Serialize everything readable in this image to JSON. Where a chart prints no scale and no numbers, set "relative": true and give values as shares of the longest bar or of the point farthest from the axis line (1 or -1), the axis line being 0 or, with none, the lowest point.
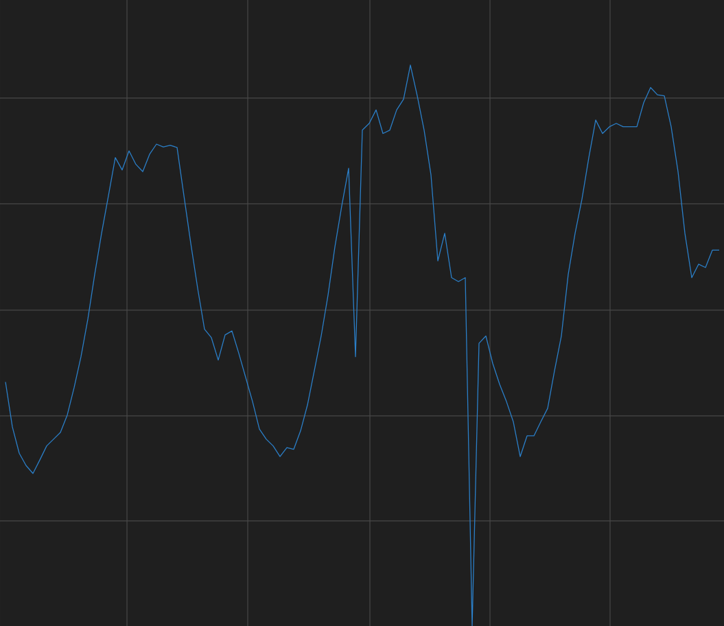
{
  "chart_data": {
    "type": "line",
    "relative": true,
    "grid": true,
    "color": "#2b7fc8",
    "categories": [
      null,
      null,
      null,
      null,
      null,
      null,
      null,
      null,
      null,
      null,
      null,
      null,
      null,
      null,
      null,
      null,
      null,
      null,
      null,
      null,
      null,
      null,
      null,
      null,
      null,
      null,
      null,
      null,
      null,
      null,
      null,
      null,
      null,
      null,
      null,
      null,
      null,
      null,
      null,
      null,
      null,
      null,
      null,
      null,
      null,
      null,
      null,
      null,
      null,
      null,
      null,
      null,
      null,
      null,
      null,
      null,
      null,
      null,
      null,
      null,
      null,
      null,
      null,
      null,
      null,
      null,
      null,
      null,
      null,
      null,
      null,
      null,
      null,
      null,
      null,
      null,
      null,
      null,
      null,
      null,
      null,
      null,
      null,
      null,
      null,
      null,
      null,
      null,
      null,
      null,
      null,
      null,
      null,
      null,
      null,
      null,
      null,
      null,
      null,
      null,
      null,
      null,
      null,
      null,
      null
    ],
    "values": [
      0.435,
      0.355,
      0.308,
      0.286,
      0.272,
      0.296,
      0.321,
      0.333,
      0.345,
      0.376,
      0.425,
      0.48,
      0.547,
      0.627,
      0.7,
      0.767,
      0.835,
      0.813,
      0.847,
      0.823,
      0.81,
      0.841,
      0.859,
      0.854,
      0.857,
      0.853,
      0.767,
      0.682,
      0.602,
      0.529,
      0.514,
      0.474,
      0.519,
      0.526,
      0.486,
      0.443,
      0.4,
      0.351,
      0.333,
      0.321,
      0.302,
      0.318,
      0.315,
      0.348,
      0.394,
      0.455,
      0.517,
      0.59,
      0.676,
      0.749,
      0.816,
      0.48,
      0.884,
      0.896,
      0.92,
      0.878,
      0.884,
      0.92,
      0.939,
      1,
      0.945,
      0.884,
      0.804,
      0.651,
      0.7,
      0.621,
      0.614,
      0.621,
      0,
      0.504,
      0.517,
      0.468,
      0.431,
      0.4,
      0.364,
      0.302,
      0.339,
      0.339,
      0.364,
      0.388,
      0.455,
      0.517,
      0.627,
      0.7,
      0.761,
      0.835,
      0.902,
      0.878,
      0.89,
      0.896,
      0.89,
      0.89,
      0.89,
      0.933,
      0.96,
      0.947,
      0.945,
      0.89,
      0.81,
      0.7,
      0.621,
      0.645,
      0.639,
      0.67,
      0.67
    ]
  }
}
